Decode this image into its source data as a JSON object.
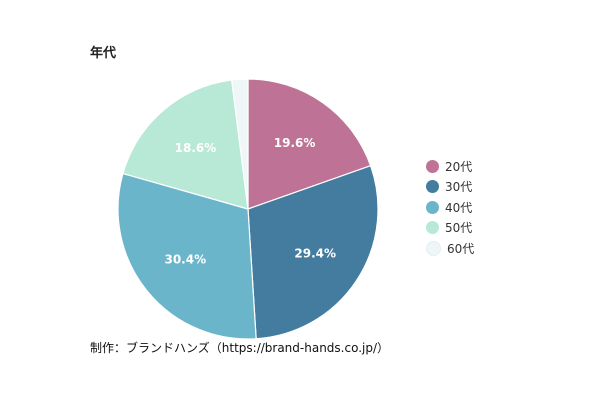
{
  "chart_data": {
    "type": "pie",
    "title": "年代",
    "categories": [
      "20代",
      "30代",
      "40代",
      "50代",
      "60代"
    ],
    "values": [
      19.6,
      29.4,
      30.4,
      18.6,
      2.0
    ],
    "data_labels": [
      "19.6%",
      "29.4%",
      "30.4%",
      "18.6%",
      ""
    ],
    "colors": [
      "#be7396",
      "#437c9f",
      "#6bb5cb",
      "#b8e8d6",
      "#eef6f8"
    ],
    "legend_position": "right",
    "start_angle": "12 o'clock, clockwise"
  },
  "footer": {
    "credit": "制作：ブランドハンズ（https://brand-hands.co.jp/）"
  }
}
